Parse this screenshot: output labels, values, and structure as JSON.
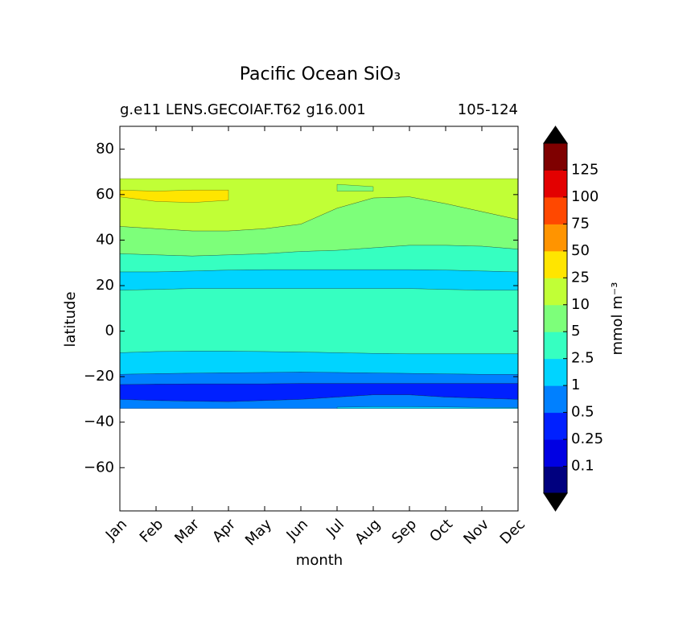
{
  "chart_data": {
    "type": "contour",
    "title": "Pacific Ocean SiO₃",
    "subtitle_left": "g.e11 LENS.GECOIAF.T62 g16.001",
    "subtitle_right": "105-124",
    "x_label": "month",
    "y_label": "latitude",
    "categories": [
      "Jan",
      "Feb",
      "Mar",
      "Apr",
      "May",
      "Jun",
      "Jul",
      "Aug",
      "Sep",
      "Oct",
      "Nov",
      "Dec"
    ],
    "ylim": [
      -79,
      90
    ],
    "yticks": [
      {
        "value": -60,
        "label": "−60"
      },
      {
        "value": -40,
        "label": "−40"
      },
      {
        "value": -20,
        "label": "−20"
      },
      0,
      20,
      40,
      60,
      80
    ],
    "bands": [
      {
        "color": "#c1ff36",
        "upper": [
          67,
          67,
          67,
          67,
          67,
          67,
          67,
          67,
          67,
          67,
          67,
          67
        ],
        "lower": [
          46,
          45,
          44,
          44,
          45,
          47,
          54,
          58.5,
          59,
          56,
          52.5,
          49
        ]
      },
      {
        "color": "#7dff7a",
        "upper": [
          46,
          45,
          44,
          44,
          45,
          47,
          54,
          58.5,
          59,
          56,
          52.5,
          49
        ],
        "lower": [
          34,
          33.5,
          33,
          33.5,
          34,
          35,
          35.5,
          36.6,
          37.7,
          37.7,
          37.3,
          36
        ]
      },
      {
        "color": "#36ffc1",
        "upper": [
          34,
          33.5,
          33,
          33.5,
          34,
          35,
          35.5,
          36.6,
          37.7,
          37.7,
          37.3,
          36
        ],
        "lower": [
          26,
          26,
          26.4,
          26.8,
          27,
          27,
          27,
          27,
          27,
          26.8,
          26.4,
          26
        ]
      },
      {
        "color": "#00d4ff",
        "upper": [
          26,
          26,
          26.4,
          26.8,
          27,
          27,
          27,
          27,
          27,
          26.8,
          26.4,
          26
        ],
        "lower": [
          18,
          18.3,
          18.7,
          18.7,
          18.7,
          18.7,
          18.7,
          18.7,
          18.7,
          18.3,
          18,
          18
        ]
      },
      {
        "color": "#36ffc1",
        "upper": [
          18,
          18.3,
          18.7,
          18.7,
          18.7,
          18.7,
          18.7,
          18.7,
          18.7,
          18.3,
          18,
          18
        ],
        "lower": [
          -9.5,
          -9,
          -8.8,
          -8.8,
          -9,
          -9.2,
          -9.5,
          -9.8,
          -10,
          -10,
          -10,
          -10
        ]
      },
      {
        "color": "#00d4ff",
        "upper": [
          -9.5,
          -9,
          -8.8,
          -8.8,
          -9,
          -9.2,
          -9.5,
          -9.8,
          -10,
          -10,
          -10,
          -10
        ],
        "lower": [
          -19,
          -18.7,
          -18.5,
          -18.3,
          -18.2,
          -18,
          -18.2,
          -18.4,
          -18.6,
          -18.8,
          -19,
          -19
        ]
      },
      {
        "color": "#0080ff",
        "upper": [
          -19,
          -18.7,
          -18.5,
          -18.3,
          -18.2,
          -18,
          -18.2,
          -18.4,
          -18.6,
          -18.8,
          -19,
          -19
        ],
        "lower": [
          -23.5,
          -23.3,
          -23.2,
          -23.2,
          -23.2,
          -23,
          -23,
          -23,
          -23,
          -23,
          -23,
          -23
        ]
      },
      {
        "color": "#0020ff",
        "upper": [
          -23.5,
          -23.3,
          -23.2,
          -23.2,
          -23.2,
          -23,
          -23,
          -23,
          -23,
          -23,
          -23,
          -23
        ],
        "lower": [
          -30,
          -30.5,
          -30.8,
          -31,
          -30.5,
          -30,
          -29,
          -28,
          -28,
          -29,
          -29.5,
          -30
        ]
      },
      {
        "color": "#0080ff",
        "upper": [
          -30,
          -30.5,
          -30.8,
          -31,
          -30.5,
          -30,
          -29,
          -28,
          -28,
          -29,
          -29.5,
          -30
        ],
        "lower": [
          -34,
          -34,
          -34,
          -34,
          -34,
          -34,
          -34,
          -34,
          -34,
          -34,
          -34,
          -34
        ]
      },
      {
        "color": "#00d4ff",
        "upper": [
          null,
          null,
          null,
          null,
          null,
          null,
          -33.4,
          -33.2,
          -33.2,
          -33.3,
          -33.5,
          -33.6
        ],
        "lower": [
          null,
          null,
          null,
          null,
          null,
          null,
          -34,
          -34,
          -34,
          -34,
          -34,
          -34
        ]
      },
      {
        "color": "#ffe500",
        "upper": [
          62,
          61.5,
          62,
          62,
          null,
          null,
          null,
          null,
          null,
          null,
          null,
          null
        ],
        "lower": [
          59,
          57,
          56.5,
          57.5,
          null,
          null,
          null,
          null,
          null,
          null,
          null,
          null
        ]
      },
      {
        "color": "#7dff7a",
        "upper": [
          null,
          null,
          null,
          null,
          null,
          null,
          64.5,
          63.5,
          null,
          null,
          null,
          null
        ],
        "lower": [
          null,
          null,
          null,
          null,
          null,
          null,
          61.5,
          61.5,
          null,
          null,
          null,
          null
        ]
      }
    ],
    "colorbar": {
      "label": "mmol m⁻³",
      "ticks": [
        0.1,
        0.25,
        0.5,
        1,
        2.5,
        5,
        10,
        25,
        50,
        75,
        100,
        125
      ],
      "colors": [
        "#00007f",
        "#0000e3",
        "#0020ff",
        "#0080ff",
        "#00d4ff",
        "#36ffc1",
        "#7dff7a",
        "#c1ff36",
        "#ffe500",
        "#ff9400",
        "#ff4800",
        "#e30000",
        "#7f0000"
      ],
      "extend_color": "#000000"
    }
  }
}
